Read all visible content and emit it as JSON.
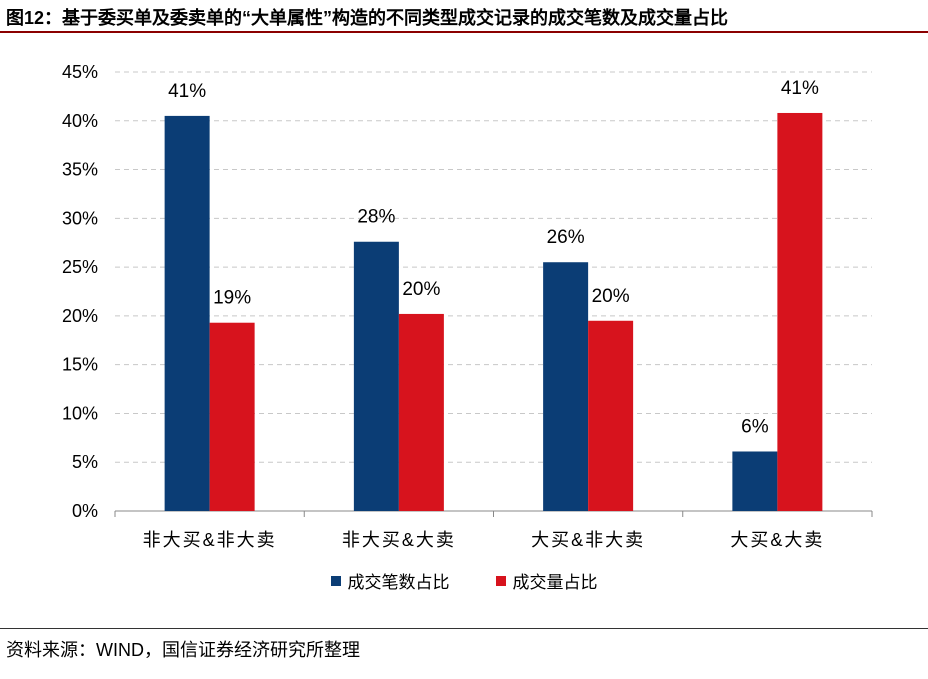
{
  "caption": "图12：基于委买单及委卖单的“大单属性”构造的不同类型成交记录的成交笔数及成交量占比",
  "source": "资料来源：WIND，国信证券经济研究所整理",
  "colors": {
    "series1": "#0b3d75",
    "series2": "#d7131d",
    "grid": "#c8c8c8",
    "title_rule": "#8b0000"
  },
  "chart_data": {
    "type": "bar",
    "title": "图12：基于委买单及委卖单的“大单属性”构造的不同类型成交记录的成交笔数及成交量占比",
    "categories": [
      "非大买&非大卖",
      "非大买&大卖",
      "大买&非大卖",
      "大买&大卖"
    ],
    "series": [
      {
        "name": "成交笔数占比",
        "values": [
          40.5,
          27.6,
          25.5,
          6.1
        ],
        "labels": [
          "41%",
          "28%",
          "26%",
          "6%"
        ]
      },
      {
        "name": "成交量占比",
        "values": [
          19.3,
          20.2,
          19.5,
          40.8
        ],
        "labels": [
          "19%",
          "20%",
          "20%",
          "41%"
        ]
      }
    ],
    "yticks": [
      "0%",
      "5%",
      "10%",
      "15%",
      "20%",
      "25%",
      "30%",
      "35%",
      "40%",
      "45%"
    ],
    "ylim": [
      0,
      45
    ],
    "xlabel": "",
    "ylabel": "",
    "grid": true,
    "legend_position": "bottom"
  }
}
